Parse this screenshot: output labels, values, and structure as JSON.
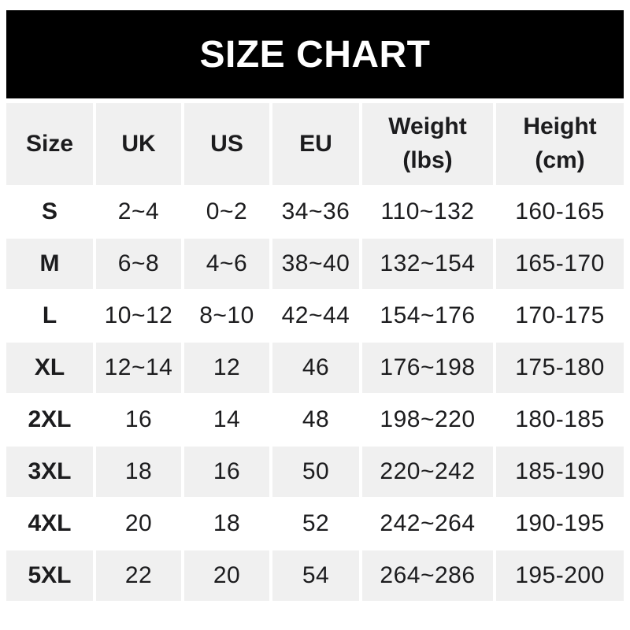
{
  "banner": {
    "title": "SIZE CHART",
    "background_color": "#000000",
    "text_color": "#ffffff"
  },
  "colors": {
    "row_alt_background": "#f0f0f0",
    "row_background": "#ffffff",
    "text": "#1c1c1e"
  },
  "table": {
    "columns": [
      {
        "id": "size",
        "label_lines": [
          "Size"
        ]
      },
      {
        "id": "uk",
        "label_lines": [
          "UK"
        ]
      },
      {
        "id": "us",
        "label_lines": [
          "US"
        ]
      },
      {
        "id": "eu",
        "label_lines": [
          "EU"
        ]
      },
      {
        "id": "weight",
        "label_lines": [
          "Weight",
          "(lbs)"
        ]
      },
      {
        "id": "height",
        "label_lines": [
          "Height",
          "(cm)"
        ]
      }
    ],
    "rows": [
      {
        "size": "S",
        "uk": "2~4",
        "us": "0~2",
        "eu": "34~36",
        "weight": "110~132",
        "height": "160-165"
      },
      {
        "size": "M",
        "uk": "6~8",
        "us": "4~6",
        "eu": "38~40",
        "weight": "132~154",
        "height": "165-170"
      },
      {
        "size": "L",
        "uk": "10~12",
        "us": "8~10",
        "eu": "42~44",
        "weight": "154~176",
        "height": "170-175"
      },
      {
        "size": "XL",
        "uk": "12~14",
        "us": "12",
        "eu": "46",
        "weight": "176~198",
        "height": "175-180"
      },
      {
        "size": "2XL",
        "uk": "16",
        "us": "14",
        "eu": "48",
        "weight": "198~220",
        "height": "180-185"
      },
      {
        "size": "3XL",
        "uk": "18",
        "us": "16",
        "eu": "50",
        "weight": "220~242",
        "height": "185-190"
      },
      {
        "size": "4XL",
        "uk": "20",
        "us": "18",
        "eu": "52",
        "weight": "242~264",
        "height": "190-195"
      },
      {
        "size": "5XL",
        "uk": "22",
        "us": "20",
        "eu": "54",
        "weight": "264~286",
        "height": "195-200"
      }
    ]
  }
}
